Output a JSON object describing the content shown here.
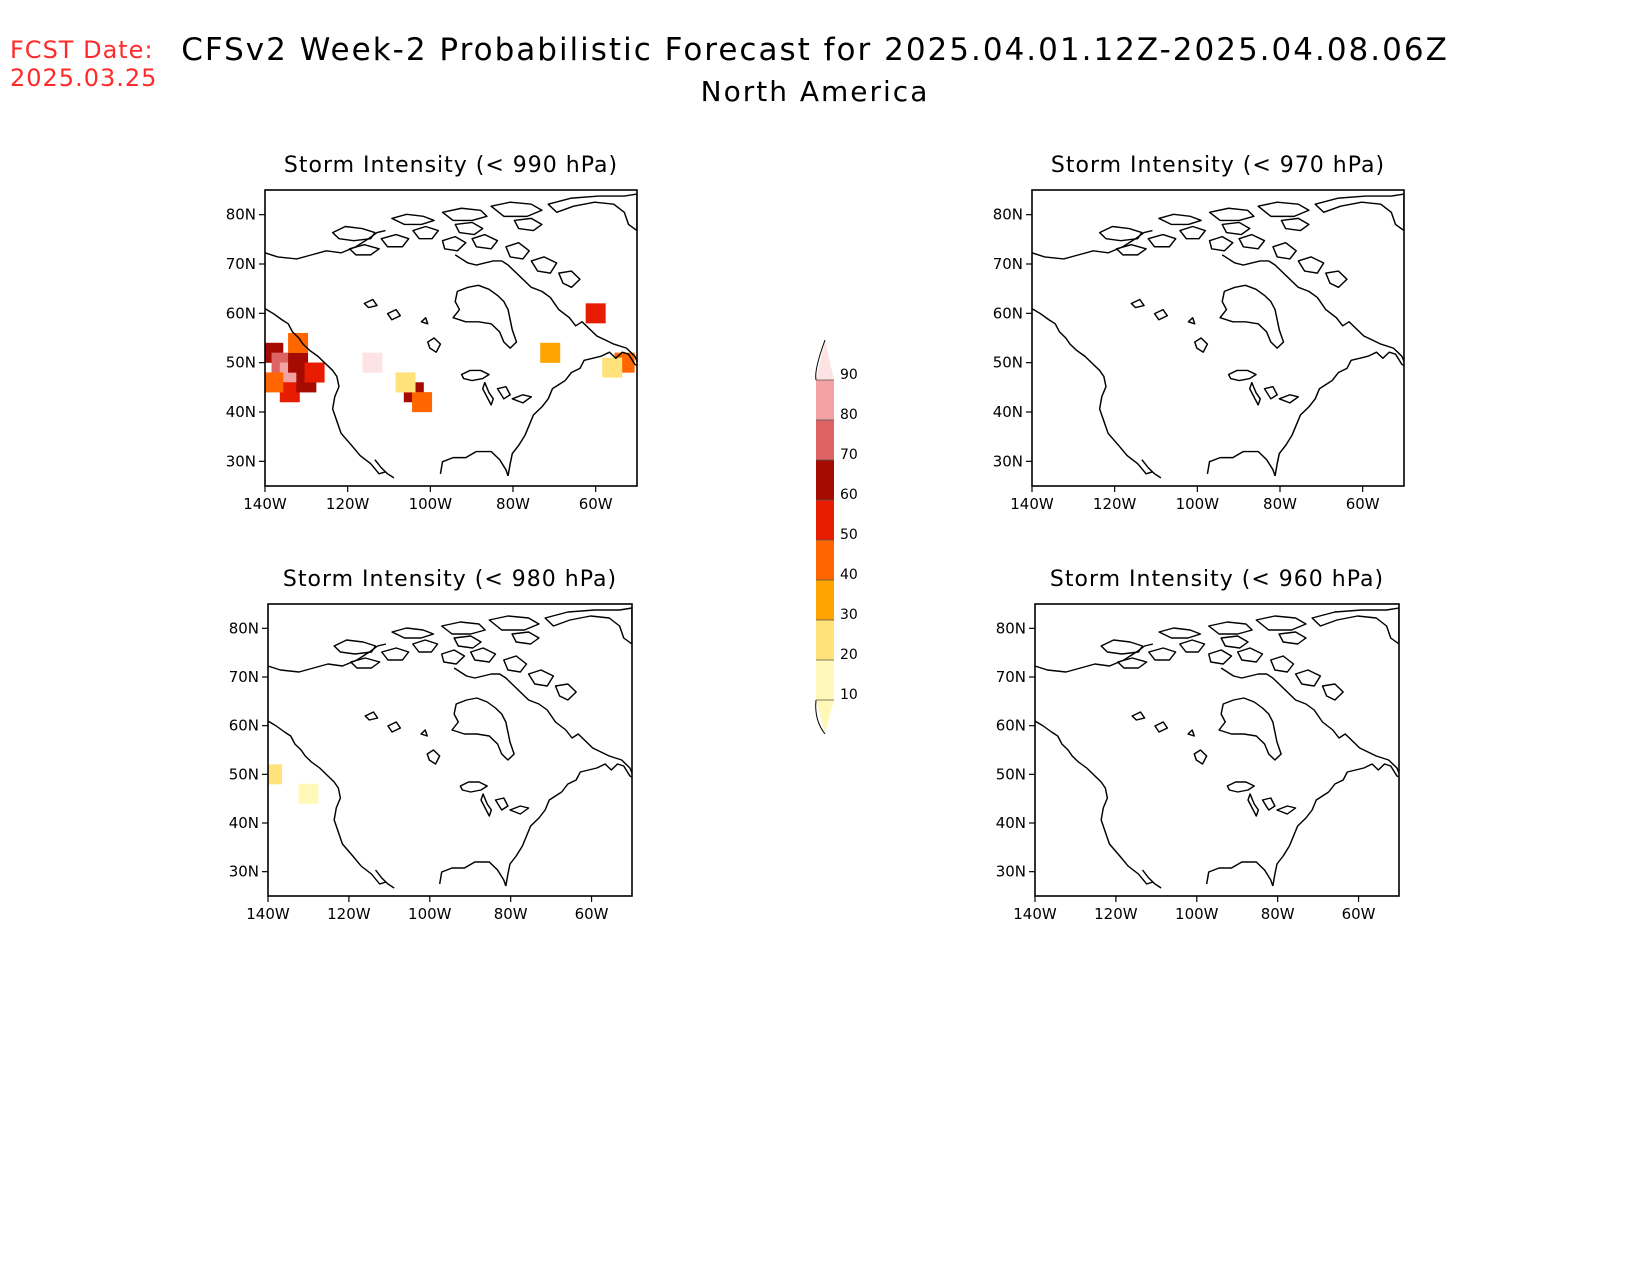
{
  "fcst_date_label": "FCST Date:",
  "fcst_date": "2025.03.25",
  "title": "CFSv2 Week-2 Probabilistic Forecast for 2025.04.01.12Z-2025.04.08.06Z",
  "subtitle": "North America",
  "colors": {
    "fcst": "#ff2a2a",
    "scale": [
      "#fff8b8",
      "#ffe27a",
      "#ffa400",
      "#ff6600",
      "#e81c00",
      "#a50b00",
      "#de6464",
      "#f2a2a2",
      "#fde3e3"
    ]
  },
  "panels": [
    {
      "id": "p990",
      "title": "Storm Intensity (< 990 hPa)",
      "threshold": "990 hPa",
      "cells": [
        {
          "lon": -138,
          "lat": 52,
          "v": 60
        },
        {
          "lon": -136,
          "lat": 50,
          "v": 70
        },
        {
          "lon": -134,
          "lat": 48,
          "v": 80
        },
        {
          "lon": -132,
          "lat": 50,
          "v": 60
        },
        {
          "lon": -134,
          "lat": 44,
          "v": 50
        },
        {
          "lon": -130,
          "lat": 46,
          "v": 60
        },
        {
          "lon": -138,
          "lat": 46,
          "v": 40
        },
        {
          "lon": -128,
          "lat": 48,
          "v": 50
        },
        {
          "lon": -132,
          "lat": 54,
          "v": 40
        },
        {
          "lon": -114,
          "lat": 50,
          "v": 90
        },
        {
          "lon": -104,
          "lat": 44,
          "v": 60
        },
        {
          "lon": -102,
          "lat": 42,
          "v": 40
        },
        {
          "lon": -106,
          "lat": 46,
          "v": 20
        },
        {
          "lon": -60,
          "lat": 60,
          "v": 50
        },
        {
          "lon": -71,
          "lat": 52,
          "v": 30
        },
        {
          "lon": -53,
          "lat": 50,
          "v": 40
        },
        {
          "lon": -56,
          "lat": 49,
          "v": 20
        }
      ]
    },
    {
      "id": "p970",
      "title": "Storm Intensity (< 970 hPa)",
      "threshold": "970 hPa",
      "cells": []
    },
    {
      "id": "p980",
      "title": "Storm Intensity (< 980 hPa)",
      "threshold": "980 hPa",
      "cells": [
        {
          "lon": -139,
          "lat": 50,
          "v": 20
        },
        {
          "lon": -130,
          "lat": 46,
          "v": 10
        }
      ]
    },
    {
      "id": "p960",
      "title": "Storm Intensity (< 960 hPa)",
      "threshold": "960 hPa",
      "cells": []
    }
  ],
  "axes": {
    "lat_ticks": [
      "80N",
      "70N",
      "60N",
      "50N",
      "40N",
      "30N"
    ],
    "lon_ticks": [
      "140W",
      "120W",
      "100W",
      "80W",
      "60W"
    ],
    "lon_range": [
      -140,
      -50
    ],
    "lat_range": [
      25,
      85
    ]
  },
  "colorbar": {
    "labels": [
      "10",
      "20",
      "30",
      "40",
      "50",
      "60",
      "70",
      "80",
      "90"
    ]
  }
}
